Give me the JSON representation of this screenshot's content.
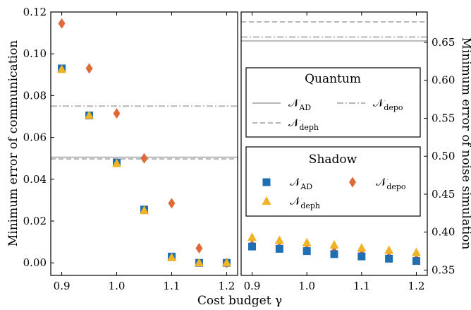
{
  "chart_data": [
    {
      "panel": "left",
      "type": "scatter",
      "ylabel": "Minimum error of communication",
      "xlabel": "Cost budget γ",
      "xlim": [
        0.88,
        1.22
      ],
      "ylim": [
        -0.006,
        0.12
      ],
      "xticks": [
        "0.9",
        "1.0",
        "1.1",
        "1.2"
      ],
      "yticks": [
        "0.00",
        "0.02",
        "0.04",
        "0.06",
        "0.08",
        "0.10",
        "0.12"
      ],
      "x": [
        0.9,
        0.95,
        1.0,
        1.05,
        1.1,
        1.15,
        1.2
      ],
      "series": [
        {
          "name": "AD",
          "marker": "square",
          "color": "#1f6fb2",
          "values": [
            0.093,
            0.0705,
            0.048,
            0.0255,
            0.003,
            0.0,
            0.0
          ]
        },
        {
          "name": "deph",
          "marker": "triangle",
          "color": "#f0b323",
          "values": [
            0.0925,
            0.0705,
            0.0475,
            0.025,
            0.0025,
            0.0,
            0.0
          ]
        },
        {
          "name": "depo",
          "marker": "diamond",
          "color": "#e0693a",
          "values": [
            0.1145,
            0.093,
            0.0715,
            0.05,
            0.0285,
            0.007,
            0.0
          ]
        }
      ],
      "reference_lines": [
        {
          "name": "AD",
          "style": "solid",
          "value": 0.0505
        },
        {
          "name": "deph",
          "style": "dashed",
          "value": 0.0497
        },
        {
          "name": "depo",
          "style": "dashdot",
          "value": 0.075
        }
      ]
    },
    {
      "panel": "right",
      "type": "scatter",
      "ylabel": "Minimum error of noise simulation",
      "xlim": [
        0.88,
        1.22
      ],
      "ylim": [
        0.343,
        0.69
      ],
      "xticks": [
        "0.9",
        "1.0",
        "1.1",
        "1.2"
      ],
      "yticks": [
        "0.35",
        "0.40",
        "0.45",
        "0.50",
        "0.55",
        "0.60",
        "0.65"
      ],
      "x": [
        0.9,
        0.95,
        1.0,
        1.05,
        1.1,
        1.15,
        1.2
      ],
      "series": [
        {
          "name": "AD",
          "marker": "square",
          "color": "#1f6fb2",
          "values": [
            0.381,
            0.378,
            0.375,
            0.371,
            0.368,
            0.365,
            0.362
          ]
        },
        {
          "name": "deph",
          "marker": "triangle",
          "color": "#f0b323",
          "values": [
            0.393,
            0.389,
            0.386,
            0.383,
            0.379,
            0.376,
            0.373
          ]
        },
        {
          "name": "depo",
          "marker": "diamond",
          "color": "#e0693a",
          "values": [
            0.383,
            0.38,
            0.377,
            0.374,
            0.371,
            0.367,
            0.364
          ]
        }
      ],
      "reference_lines": [
        {
          "name": "AD",
          "style": "solid",
          "value": 0.652
        },
        {
          "name": "deph",
          "style": "dashed",
          "value": 0.677
        },
        {
          "name": "depo",
          "style": "dashdot",
          "value": 0.657
        }
      ]
    }
  ],
  "legends": {
    "quantum": {
      "title": "Quantum",
      "entries": [
        {
          "base": "𝒩",
          "sub": "AD",
          "style": "solid"
        },
        {
          "base": "𝒩",
          "sub": "depo",
          "style": "dashdot"
        },
        {
          "base": "𝒩",
          "sub": "deph",
          "style": "dashed"
        }
      ]
    },
    "shadow": {
      "title": "Shadow",
      "entries": [
        {
          "base": "𝒩",
          "sub": "AD",
          "marker": "square"
        },
        {
          "base": "𝒩",
          "sub": "depo",
          "marker": "diamond"
        },
        {
          "base": "𝒩",
          "sub": "deph",
          "marker": "triangle"
        }
      ]
    }
  },
  "colors": {
    "line": "#b7b7b7",
    "square": "#1f6fb2",
    "triangle": "#f0b323",
    "diamond": "#e0693a"
  }
}
